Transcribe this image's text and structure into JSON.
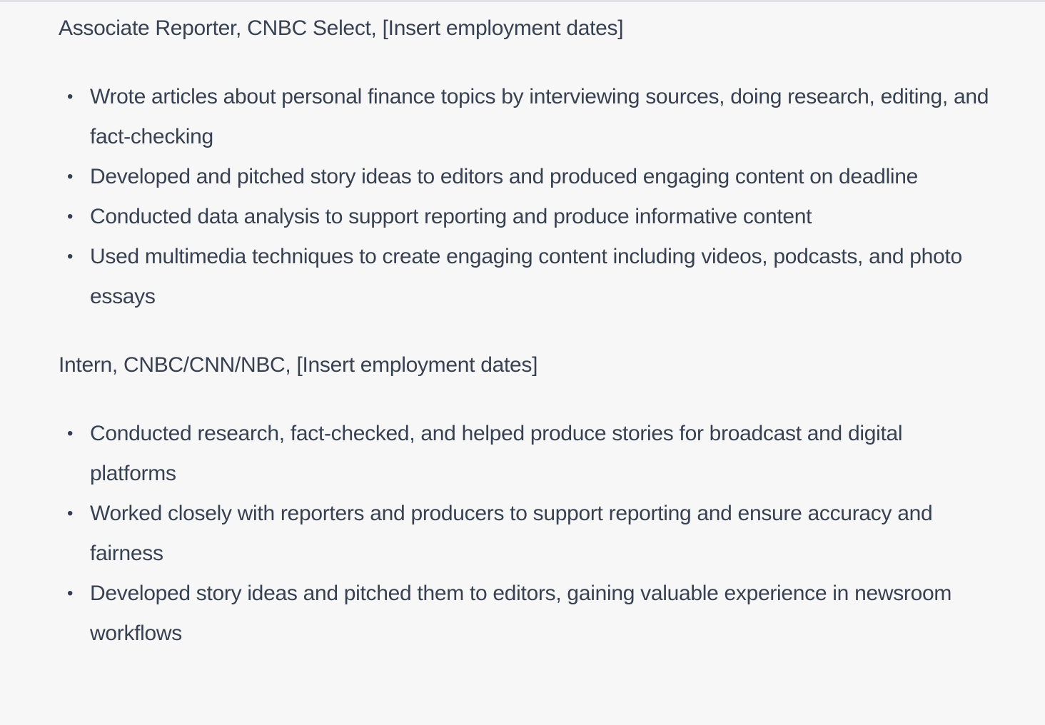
{
  "jobs": [
    {
      "title": "Associate Reporter, CNBC Select, [Insert employment dates]",
      "bullets": [
        "Wrote articles about personal finance topics by interviewing sources, doing research, editing, and fact-checking",
        "Developed and pitched story ideas to editors and produced engaging content on deadline",
        "Conducted data analysis to support reporting and produce informative content",
        "Used multimedia techniques to create engaging content including videos, podcasts, and photo essays"
      ]
    },
    {
      "title": "Intern, CNBC/CNN/NBC, [Insert employment dates]",
      "bullets": [
        "Conducted research, fact-checked, and helped produce stories for broadcast and digital platforms",
        "Worked closely with reporters and producers to support reporting and ensure accuracy and fairness",
        "Developed story ideas and pitched them to editors, gaining valuable experience in newsroom workflows"
      ]
    }
  ]
}
